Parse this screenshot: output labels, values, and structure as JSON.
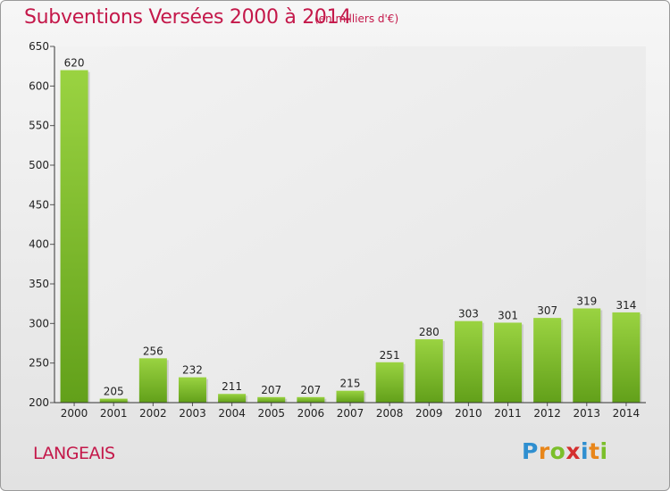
{
  "header": {
    "title": "Subventions Versées 2000 à 2014",
    "subtitle": "(en milliers d'€)"
  },
  "footer": {
    "commune": "LANGEAIS",
    "brand_letters": [
      "P",
      "r",
      "o",
      "x",
      "i",
      "t",
      "i"
    ],
    "brand_colors": [
      "#2f8fd0",
      "#e8861a",
      "#7bbf2a",
      "#d42f2f",
      "#2f8fd0",
      "#e8861a",
      "#7bbf2a"
    ]
  },
  "chart_data": {
    "type": "bar",
    "title": "Subventions Versées 2000 à 2014",
    "subtitle": "(en milliers d'€)",
    "categories": [
      "2000",
      "2001",
      "2002",
      "2003",
      "2004",
      "2005",
      "2006",
      "2007",
      "2008",
      "2009",
      "2010",
      "2011",
      "2012",
      "2013",
      "2014"
    ],
    "values": [
      620,
      205,
      256,
      232,
      211,
      207,
      207,
      215,
      251,
      280,
      303,
      301,
      307,
      319,
      314
    ],
    "ylim": [
      200,
      650
    ],
    "yticks": [
      200,
      250,
      300,
      350,
      400,
      450,
      500,
      550,
      600,
      650
    ],
    "grid": false,
    "bar_color": "#7ab82e",
    "xlabel": "",
    "ylabel": ""
  }
}
